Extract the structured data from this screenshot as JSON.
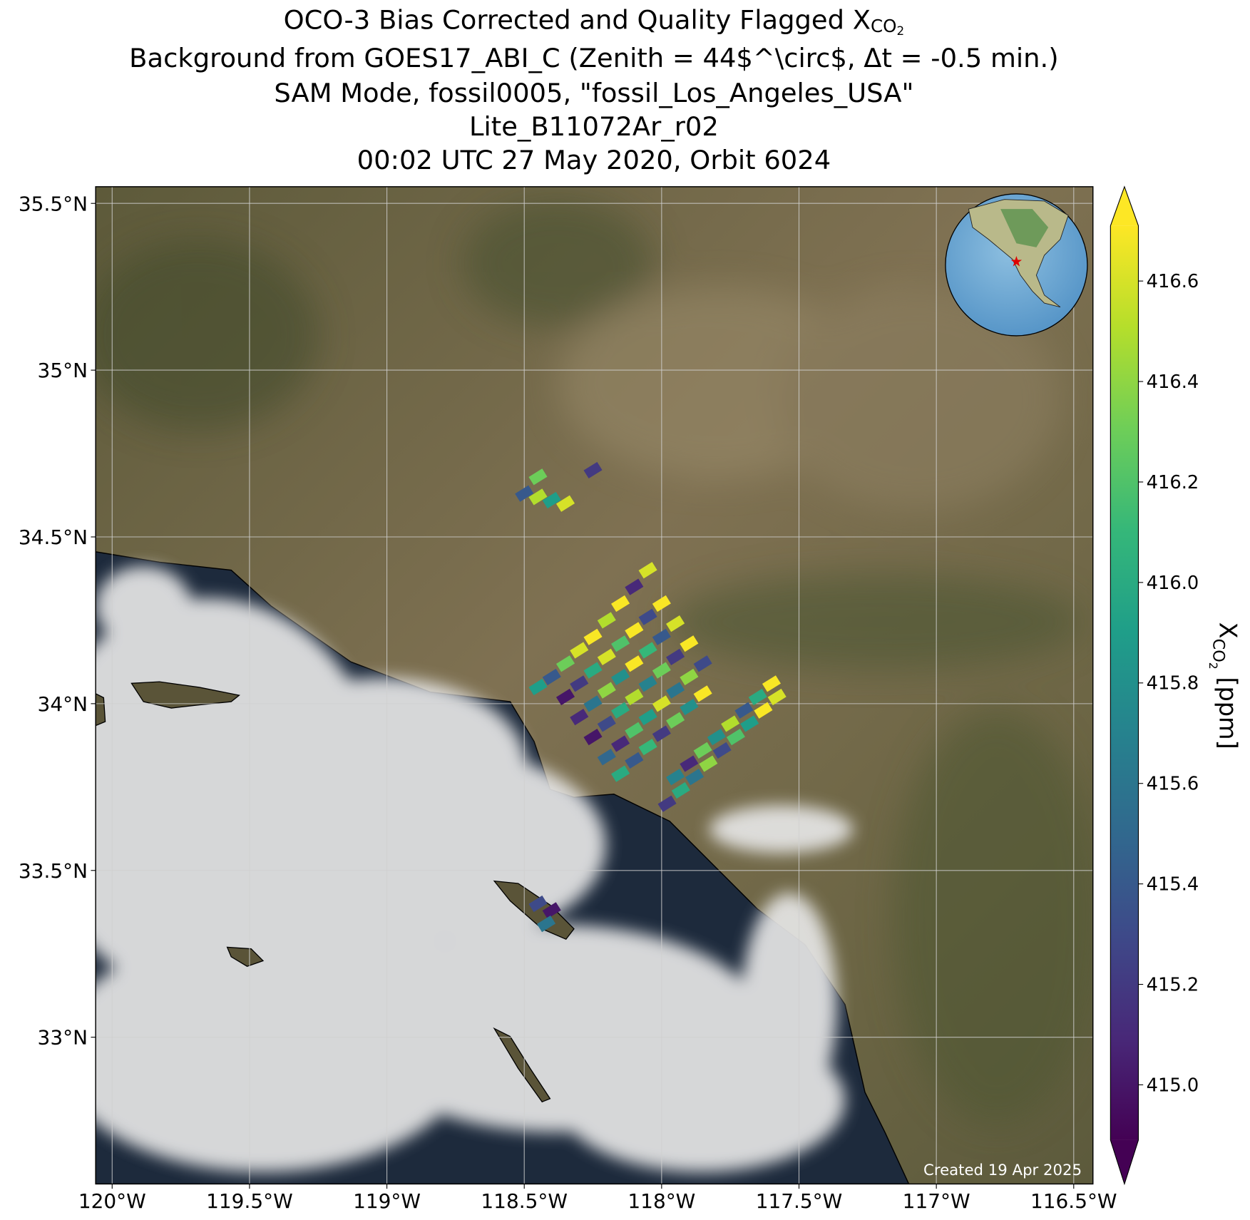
{
  "chart_data": {
    "type": "map",
    "title": [
      {
        "text": "OCO-3 Bias Corrected and Quality Flagged X",
        "sub": "CO",
        "subsub": "2"
      },
      {
        "text": "Background from GOES17_ABI_C (Zenith = 44$^\\circ$, Δt = -0.5 min.)"
      },
      {
        "text": "SAM Mode, fossil0005, \"fossil_Los_Angeles_USA\""
      },
      {
        "text": "Lite_B11072Ar_r02"
      },
      {
        "text": "00:02 UTC 27 May 2020, Orbit 6024"
      }
    ],
    "xlim": [
      -120.06,
      -116.43
    ],
    "ylim": [
      32.56,
      35.55
    ],
    "xticks": [
      {
        "value": -120,
        "label": "120°W"
      },
      {
        "value": -119.5,
        "label": "119.5°W"
      },
      {
        "value": -119,
        "label": "119°W"
      },
      {
        "value": -118.5,
        "label": "118.5°W"
      },
      {
        "value": -118,
        "label": "118°W"
      },
      {
        "value": -117.5,
        "label": "117.5°W"
      },
      {
        "value": -117,
        "label": "117°W"
      },
      {
        "value": -116.5,
        "label": "116.5°W"
      }
    ],
    "yticks": [
      {
        "value": 33,
        "label": "33°N"
      },
      {
        "value": 33.5,
        "label": "33.5°N"
      },
      {
        "value": 34,
        "label": "34°N"
      },
      {
        "value": 34.5,
        "label": "34.5°N"
      },
      {
        "value": 35,
        "label": "35°N"
      },
      {
        "value": 35.5,
        "label": "35.5°N"
      }
    ],
    "grid": true,
    "soundings": {
      "lon": [
        -118.45,
        -118.4,
        -118.35,
        -118.3,
        -118.25,
        -118.2,
        -118.15,
        -118.1,
        -118.05,
        -118.35,
        -118.3,
        -118.25,
        -118.2,
        -118.15,
        -118.1,
        -118.05,
        -118.0,
        -118.3,
        -118.25,
        -118.2,
        -118.15,
        -118.1,
        -118.05,
        -118.0,
        -117.95,
        -118.25,
        -118.2,
        -118.15,
        -118.1,
        -118.05,
        -118.0,
        -117.95,
        -117.9,
        -118.2,
        -118.15,
        -118.1,
        -118.05,
        -118.0,
        -117.95,
        -117.9,
        -117.85,
        -118.15,
        -118.1,
        -118.05,
        -118.0,
        -117.95,
        -117.9,
        -117.85,
        -117.98,
        -117.93,
        -117.88,
        -117.83,
        -117.78,
        -117.73,
        -117.68,
        -117.63,
        -117.58,
        -117.95,
        -117.9,
        -117.85,
        -117.8,
        -117.75,
        -117.7,
        -117.65,
        -117.6,
        -118.5,
        -118.45,
        -118.4,
        -118.35,
        -118.45,
        -118.25,
        -118.45,
        -118.4,
        -118.42
      ],
      "lat": [
        34.05,
        34.08,
        34.12,
        34.16,
        34.2,
        34.25,
        34.3,
        34.35,
        34.4,
        34.02,
        34.06,
        34.1,
        34.14,
        34.18,
        34.22,
        34.26,
        34.3,
        33.96,
        34.0,
        34.04,
        34.08,
        34.12,
        34.16,
        34.2,
        34.24,
        33.9,
        33.94,
        33.98,
        34.02,
        34.06,
        34.1,
        34.14,
        34.18,
        33.84,
        33.88,
        33.92,
        33.96,
        34.0,
        34.04,
        34.08,
        34.12,
        33.79,
        33.83,
        33.87,
        33.91,
        33.95,
        33.99,
        34.03,
        33.7,
        33.74,
        33.78,
        33.82,
        33.86,
        33.9,
        33.94,
        33.98,
        34.02,
        33.78,
        33.82,
        33.86,
        33.9,
        33.94,
        33.98,
        34.02,
        34.06,
        34.63,
        34.62,
        34.61,
        34.6,
        34.68,
        34.7,
        33.4,
        33.38,
        33.34
      ],
      "values": [
        415.9,
        415.4,
        416.3,
        416.6,
        416.7,
        416.5,
        416.7,
        415.1,
        416.6,
        415.0,
        415.2,
        416.0,
        416.6,
        416.2,
        416.7,
        415.3,
        416.7,
        415.1,
        415.6,
        416.4,
        415.8,
        416.7,
        416.1,
        415.4,
        416.6,
        415.0,
        415.3,
        416.0,
        416.5,
        415.7,
        416.3,
        415.2,
        416.7,
        415.5,
        415.1,
        416.2,
        415.9,
        416.6,
        415.6,
        416.4,
        415.3,
        416.0,
        415.4,
        416.1,
        415.2,
        416.3,
        415.8,
        416.7,
        415.2,
        416.0,
        415.6,
        416.4,
        415.3,
        416.2,
        415.9,
        416.7,
        416.6,
        415.7,
        415.1,
        416.3,
        415.8,
        416.5,
        415.4,
        416.0,
        416.7,
        415.4,
        416.5,
        415.9,
        416.6,
        416.3,
        415.2,
        415.3,
        415.0,
        415.6
      ]
    },
    "colorbar": {
      "colormap": [
        "#440154",
        "#482878",
        "#3e4989",
        "#31688e",
        "#26828e",
        "#1f9e89",
        "#35b779",
        "#6ece58",
        "#b5de2b",
        "#fde725"
      ],
      "clim": [
        414.89,
        416.71
      ],
      "extend": "both",
      "ticks": [
        415.0,
        415.2,
        415.4,
        415.6,
        415.8,
        416.0,
        416.2,
        416.4,
        416.6
      ],
      "tick_labels": [
        "415.0",
        "415.2",
        "415.4",
        "415.6",
        "415.8",
        "416.0",
        "416.2",
        "416.4",
        "416.6"
      ],
      "label": {
        "text": "X",
        "sub": "CO",
        "subsub": "2",
        "unit": " [ppm]"
      }
    },
    "credit": "Created 19 Apr 2025"
  }
}
